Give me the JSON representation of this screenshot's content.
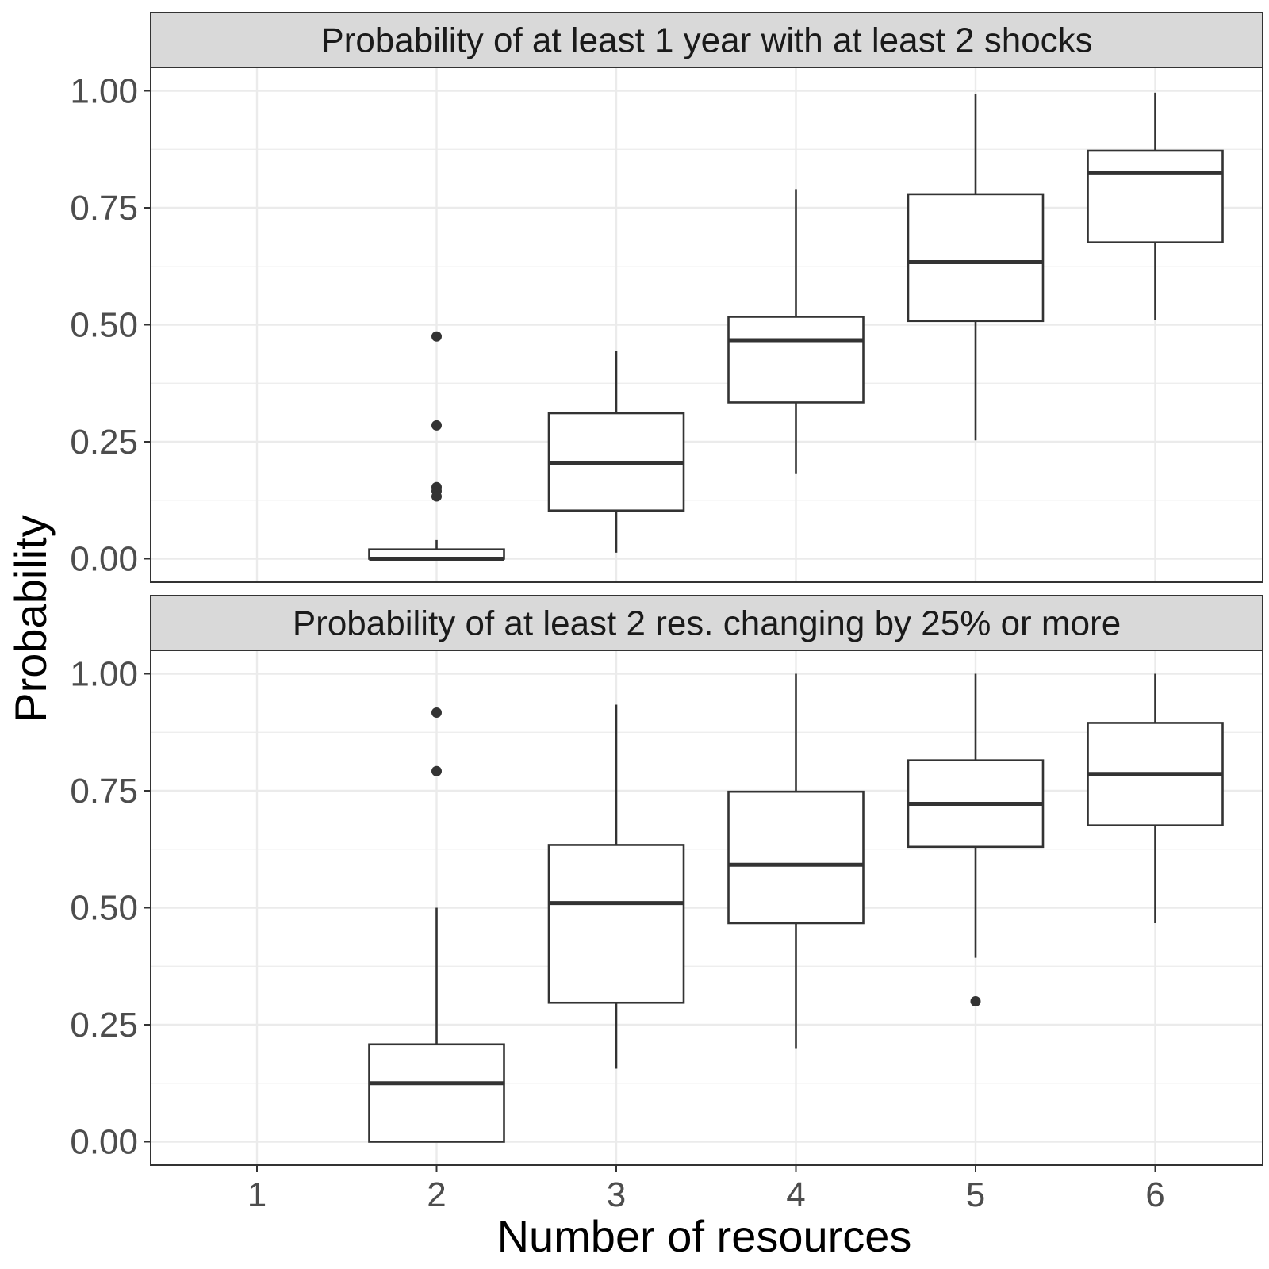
{
  "chart_data": {
    "type": "boxplot",
    "xlabel": "Number of resources",
    "ylabel": "Probability",
    "categories": [
      "1",
      "2",
      "3",
      "4",
      "5",
      "6"
    ],
    "ylim": [
      -0.05,
      1.05
    ],
    "yticks": [
      "0.00",
      "0.25",
      "0.50",
      "0.75",
      "1.00"
    ],
    "grid": true,
    "panels": [
      {
        "title": "Probability of at least 1 year with at least 2 shocks",
        "boxes": [
          {
            "x": "2",
            "whisker_low": 0.0,
            "q1": 0.0,
            "median": 0.0,
            "q3": 0.02,
            "whisker_high": 0.04,
            "outliers": [
              0.475,
              0.285,
              0.153,
              0.145,
              0.133
            ]
          },
          {
            "x": "3",
            "whisker_low": 0.013,
            "q1": 0.103,
            "median": 0.205,
            "q3": 0.311,
            "whisker_high": 0.445,
            "outliers": []
          },
          {
            "x": "4",
            "whisker_low": 0.181,
            "q1": 0.334,
            "median": 0.467,
            "q3": 0.517,
            "whisker_high": 0.79,
            "outliers": []
          },
          {
            "x": "5",
            "whisker_low": 0.253,
            "q1": 0.508,
            "median": 0.634,
            "q3": 0.779,
            "whisker_high": 0.994,
            "outliers": []
          },
          {
            "x": "6",
            "whisker_low": 0.511,
            "q1": 0.676,
            "median": 0.824,
            "q3": 0.872,
            "whisker_high": 0.996,
            "outliers": []
          }
        ]
      },
      {
        "title": "Probability of at least 2 res. changing by 25% or more",
        "boxes": [
          {
            "x": "2",
            "whisker_low": 0.0,
            "q1": 0.0,
            "median": 0.125,
            "q3": 0.208,
            "whisker_high": 0.5,
            "outliers": [
              0.917,
              0.792
            ]
          },
          {
            "x": "3",
            "whisker_low": 0.156,
            "q1": 0.297,
            "median": 0.51,
            "q3": 0.634,
            "whisker_high": 0.934,
            "outliers": []
          },
          {
            "x": "4",
            "whisker_low": 0.2,
            "q1": 0.467,
            "median": 0.592,
            "q3": 0.748,
            "whisker_high": 1.0,
            "outliers": []
          },
          {
            "x": "5",
            "whisker_low": 0.393,
            "q1": 0.63,
            "median": 0.722,
            "q3": 0.815,
            "whisker_high": 1.0,
            "outliers": [
              0.3
            ]
          },
          {
            "x": "6",
            "whisker_low": 0.467,
            "q1": 0.676,
            "median": 0.786,
            "q3": 0.895,
            "whisker_high": 1.0,
            "outliers": []
          }
        ]
      }
    ]
  }
}
